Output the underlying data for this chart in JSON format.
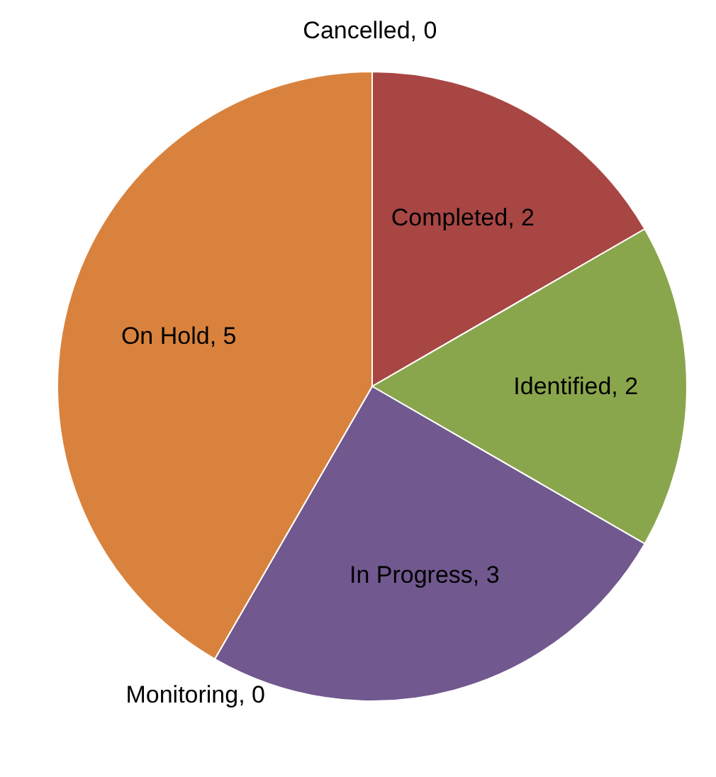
{
  "chart_data": {
    "type": "pie",
    "categories": [
      "Cancelled",
      "Completed",
      "Identified",
      "In Progress",
      "Monitoring",
      "On Hold"
    ],
    "values": [
      0,
      2,
      2,
      3,
      0,
      5
    ],
    "colors": [
      "#4f81bd",
      "#a84644",
      "#8aa64c",
      "#71588f",
      "#4bacc6",
      "#d9823d"
    ],
    "value_labels": [
      ", 0",
      ", 2",
      ", 2",
      ", 3",
      ", 0",
      ", 5"
    ]
  }
}
